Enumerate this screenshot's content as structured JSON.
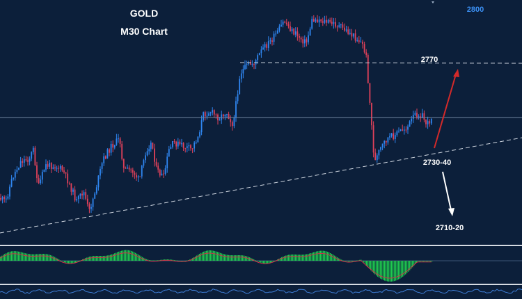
{
  "chart_data": {
    "type": "candlestick",
    "title": "GOLD",
    "subtitle": "M30 Chart",
    "y_tick_labels": [
      "2800"
    ],
    "levels": [
      {
        "label": "2770",
        "value": 2770,
        "style": "dashed"
      },
      {
        "label": "2730-40",
        "value": 2735,
        "style": "dashed-trendline"
      },
      {
        "label": "2710-20",
        "value": 2715,
        "style": "text"
      }
    ],
    "current_price": 2748,
    "projections": [
      {
        "direction": "up",
        "color": "#d32a2a"
      },
      {
        "direction": "down",
        "color": "#ffffff"
      }
    ],
    "colors": {
      "background": "#0c1f3a",
      "bull": "#2f86f0",
      "bear": "#e0415a",
      "histogram_positive": "#1fc94f",
      "histogram_negative": "#1fc94f",
      "signal_line": "#d0304a"
    }
  }
}
